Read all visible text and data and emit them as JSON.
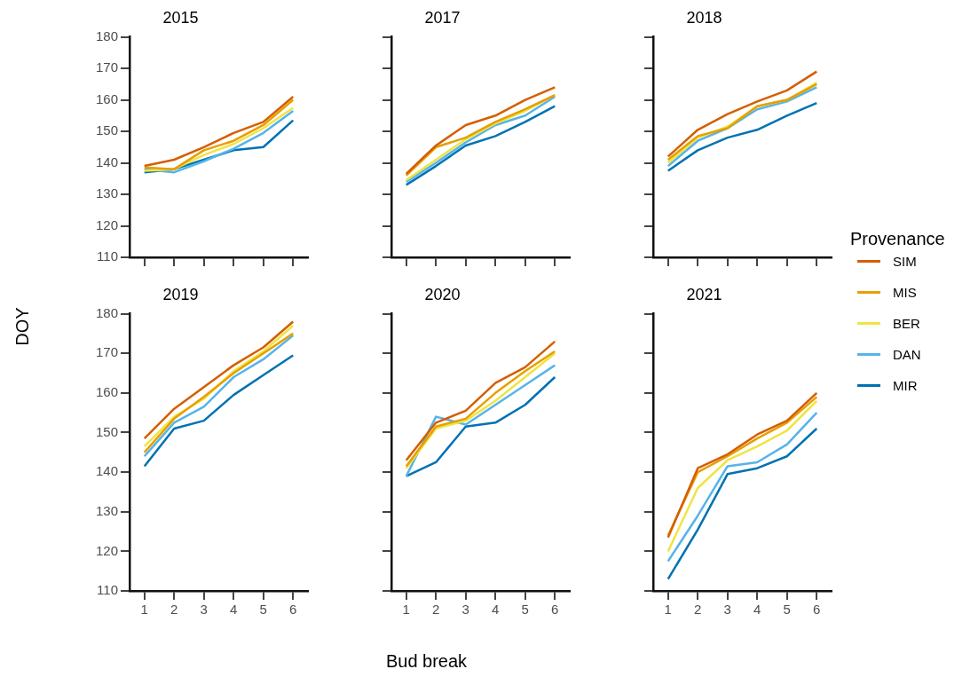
{
  "chart_data": [
    {
      "type": "line",
      "title": "2015",
      "categories": [
        "1",
        "2",
        "3",
        "4",
        "5",
        "6"
      ],
      "ylim": [
        110,
        180
      ],
      "yticks": [
        110,
        120,
        130,
        140,
        150,
        160,
        170,
        180
      ],
      "tick_labels": "y",
      "grid": false,
      "ylabel": "DOY",
      "legend": "right",
      "legend_title": "Provenance",
      "series": [
        {
          "name": "SIM",
          "color": "#d55e00",
          "values": [
            139,
            141,
            145,
            149.5,
            153,
            161
          ]
        },
        {
          "name": "MIS",
          "color": "#e69f00",
          "values": [
            138.5,
            138,
            144,
            147,
            152,
            160
          ]
        },
        {
          "name": "BER",
          "color": "#f0e442",
          "values": [
            137.5,
            138,
            142.5,
            146,
            151,
            157.5
          ]
        },
        {
          "name": "DAN",
          "color": "#56b4e9",
          "values": [
            138,
            137,
            140.5,
            144.5,
            149.5,
            156.5
          ]
        },
        {
          "name": "MIR",
          "color": "#0072b2",
          "values": [
            137,
            138,
            141,
            144,
            145,
            153.5
          ]
        }
      ]
    },
    {
      "type": "line",
      "title": "2017",
      "categories": [
        "1",
        "2",
        "3",
        "4",
        "5",
        "6"
      ],
      "ylim": [
        110,
        180
      ],
      "yticks": [
        110,
        120,
        130,
        140,
        150,
        160,
        170,
        180
      ],
      "tick_labels": false,
      "grid": false,
      "series": [
        {
          "color": "#d55e00",
          "values": [
            136.5,
            145.5,
            152,
            155,
            160,
            164
          ]
        },
        {
          "color": "#e69f00",
          "values": [
            136,
            145,
            148,
            153,
            157,
            161.5
          ]
        },
        {
          "color": "#f0e442",
          "values": [
            134.5,
            141,
            147.5,
            152.5,
            156.5,
            161.5
          ]
        },
        {
          "color": "#56b4e9",
          "values": [
            134,
            140,
            146.5,
            152,
            155,
            161
          ]
        },
        {
          "color": "#0072b2",
          "values": [
            133,
            139,
            145.5,
            148.5,
            153,
            158
          ]
        }
      ]
    },
    {
      "type": "line",
      "title": "2018",
      "categories": [
        "1",
        "2",
        "3",
        "4",
        "5",
        "6"
      ],
      "ylim": [
        110,
        180
      ],
      "yticks": [
        110,
        120,
        130,
        140,
        150,
        160,
        170,
        180
      ],
      "tick_labels": false,
      "grid": false,
      "series": [
        {
          "color": "#d55e00",
          "values": [
            142,
            150.5,
            155.5,
            159.5,
            163,
            169
          ]
        },
        {
          "color": "#e69f00",
          "values": [
            141,
            148.5,
            151,
            158,
            160,
            165
          ]
        },
        {
          "color": "#f0e442",
          "values": [
            140,
            148,
            151.5,
            158,
            160,
            165.5
          ]
        },
        {
          "color": "#56b4e9",
          "values": [
            139,
            147,
            151,
            157,
            159.5,
            164
          ]
        },
        {
          "color": "#0072b2",
          "values": [
            137.5,
            144,
            148,
            150.5,
            155,
            159
          ]
        }
      ]
    },
    {
      "type": "line",
      "title": "2019",
      "categories": [
        "1",
        "2",
        "3",
        "4",
        "5",
        "6"
      ],
      "ylim": [
        110,
        180
      ],
      "yticks": [
        110,
        120,
        130,
        140,
        150,
        160,
        170,
        180
      ],
      "grid": false,
      "series": [
        {
          "color": "#d55e00",
          "values": [
            148.5,
            156,
            161.5,
            167,
            171.5,
            178
          ]
        },
        {
          "color": "#e69f00",
          "values": [
            145,
            153.5,
            159,
            165,
            170,
            175
          ]
        },
        {
          "color": "#f0e442",
          "values": [
            146.5,
            154,
            158.5,
            165.5,
            170.5,
            177
          ]
        },
        {
          "color": "#56b4e9",
          "values": [
            144,
            152.5,
            156.5,
            164,
            168.5,
            174.5
          ]
        },
        {
          "color": "#0072b2",
          "values": [
            141.5,
            151,
            153,
            159.5,
            164.5,
            169.5
          ]
        }
      ]
    },
    {
      "type": "line",
      "title": "2020",
      "categories": [
        "1",
        "2",
        "3",
        "4",
        "5",
        "6"
      ],
      "ylim": [
        110,
        180
      ],
      "yticks": [
        110,
        120,
        130,
        140,
        150,
        160,
        170,
        180
      ],
      "tick_labels": "x",
      "grid": false,
      "xlabel": "Bud break",
      "series": [
        {
          "color": "#d55e00",
          "values": [
            143,
            152.5,
            155.5,
            162.5,
            166.5,
            173
          ]
        },
        {
          "color": "#e69f00",
          "values": [
            141.5,
            151.5,
            153.5,
            160,
            165.5,
            170.5
          ]
        },
        {
          "color": "#f0e442",
          "values": [
            141,
            151,
            153,
            158,
            164,
            170
          ]
        },
        {
          "color": "#56b4e9",
          "values": [
            139,
            154,
            152,
            157,
            162,
            167
          ]
        },
        {
          "color": "#0072b2",
          "values": [
            139,
            142.5,
            151.5,
            152.5,
            157,
            164
          ]
        }
      ]
    },
    {
      "type": "line",
      "title": "2021",
      "categories": [
        "1",
        "2",
        "3",
        "4",
        "5",
        "6"
      ],
      "ylim": [
        110,
        180
      ],
      "yticks": [
        110,
        120,
        130,
        140,
        150,
        160,
        170,
        180
      ],
      "tick_labels": "x",
      "grid": false,
      "series": [
        {
          "color": "#d55e00",
          "values": [
            123.5,
            141,
            144.5,
            149.5,
            153,
            160
          ]
        },
        {
          "color": "#e69f00",
          "values": [
            124,
            140,
            144,
            148.5,
            152.5,
            159
          ]
        },
        {
          "color": "#f0e442",
          "values": [
            120,
            136,
            143,
            146.5,
            150.5,
            158
          ]
        },
        {
          "color": "#56b4e9",
          "values": [
            117.5,
            129,
            141.5,
            142.5,
            147,
            155
          ]
        },
        {
          "color": "#0072b2",
          "values": [
            113,
            125.5,
            139.5,
            141,
            144,
            151
          ]
        }
      ]
    }
  ]
}
